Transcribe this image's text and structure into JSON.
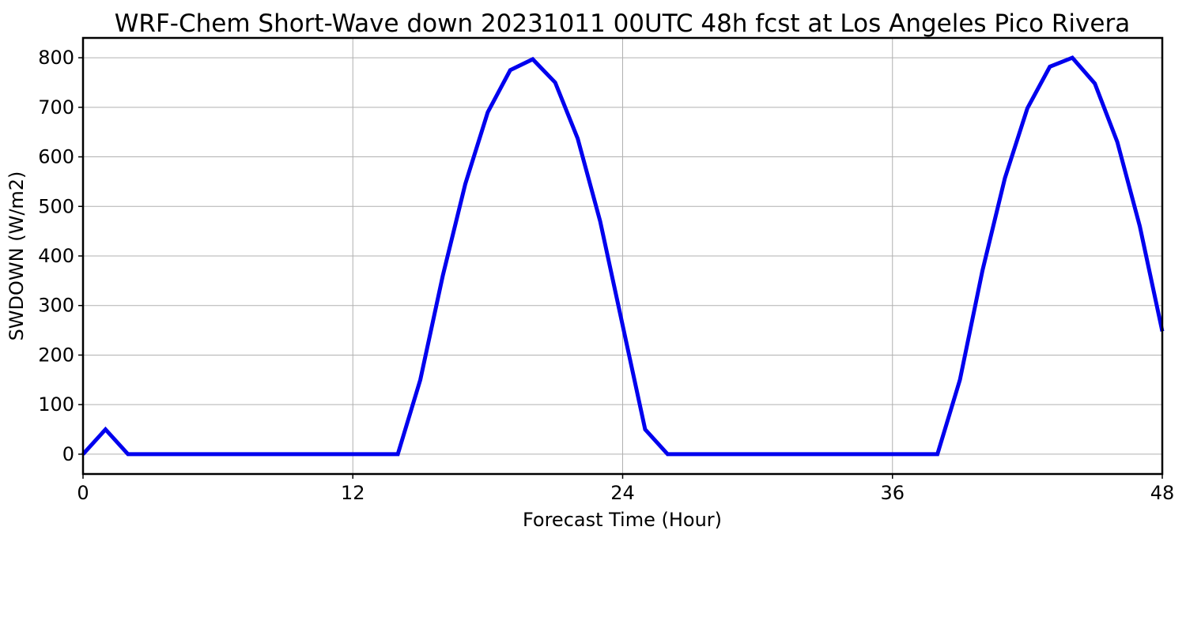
{
  "chart_data": {
    "type": "line",
    "title": "WRF-Chem Short-Wave down  20231011 00UTC 48h fcst at Los Angeles Pico Rivera",
    "xlabel": "Forecast Time (Hour)",
    "ylabel": "SWDOWN  (W/m2)",
    "xlim": [
      0,
      48
    ],
    "ylim": [
      -40,
      840
    ],
    "xticks": [
      0,
      12,
      24,
      36,
      48
    ],
    "yticks": [
      0,
      100,
      200,
      300,
      400,
      500,
      600,
      700,
      800
    ],
    "grid": true,
    "line_color": "#0000ee",
    "series": [
      {
        "x": [
          0,
          1,
          2,
          3,
          4,
          5,
          6,
          7,
          8,
          9,
          10,
          11,
          12,
          13,
          14,
          15,
          16,
          17,
          18,
          19,
          20,
          21,
          22,
          23,
          24,
          25,
          26,
          27,
          28,
          29,
          30,
          31,
          32,
          33,
          34,
          35,
          36,
          37,
          38,
          39,
          40,
          41,
          42,
          43,
          44,
          45,
          46,
          47,
          48
        ],
        "values": [
          0,
          50,
          0,
          0,
          0,
          0,
          0,
          0,
          0,
          0,
          0,
          0,
          0,
          0,
          0,
          150,
          360,
          545,
          690,
          775,
          797,
          750,
          637,
          470,
          260,
          50,
          0,
          0,
          0,
          0,
          0,
          0,
          0,
          0,
          0,
          0,
          0,
          0,
          0,
          150,
          370,
          557,
          698,
          782,
          800,
          748,
          630,
          460,
          248
        ]
      }
    ]
  }
}
